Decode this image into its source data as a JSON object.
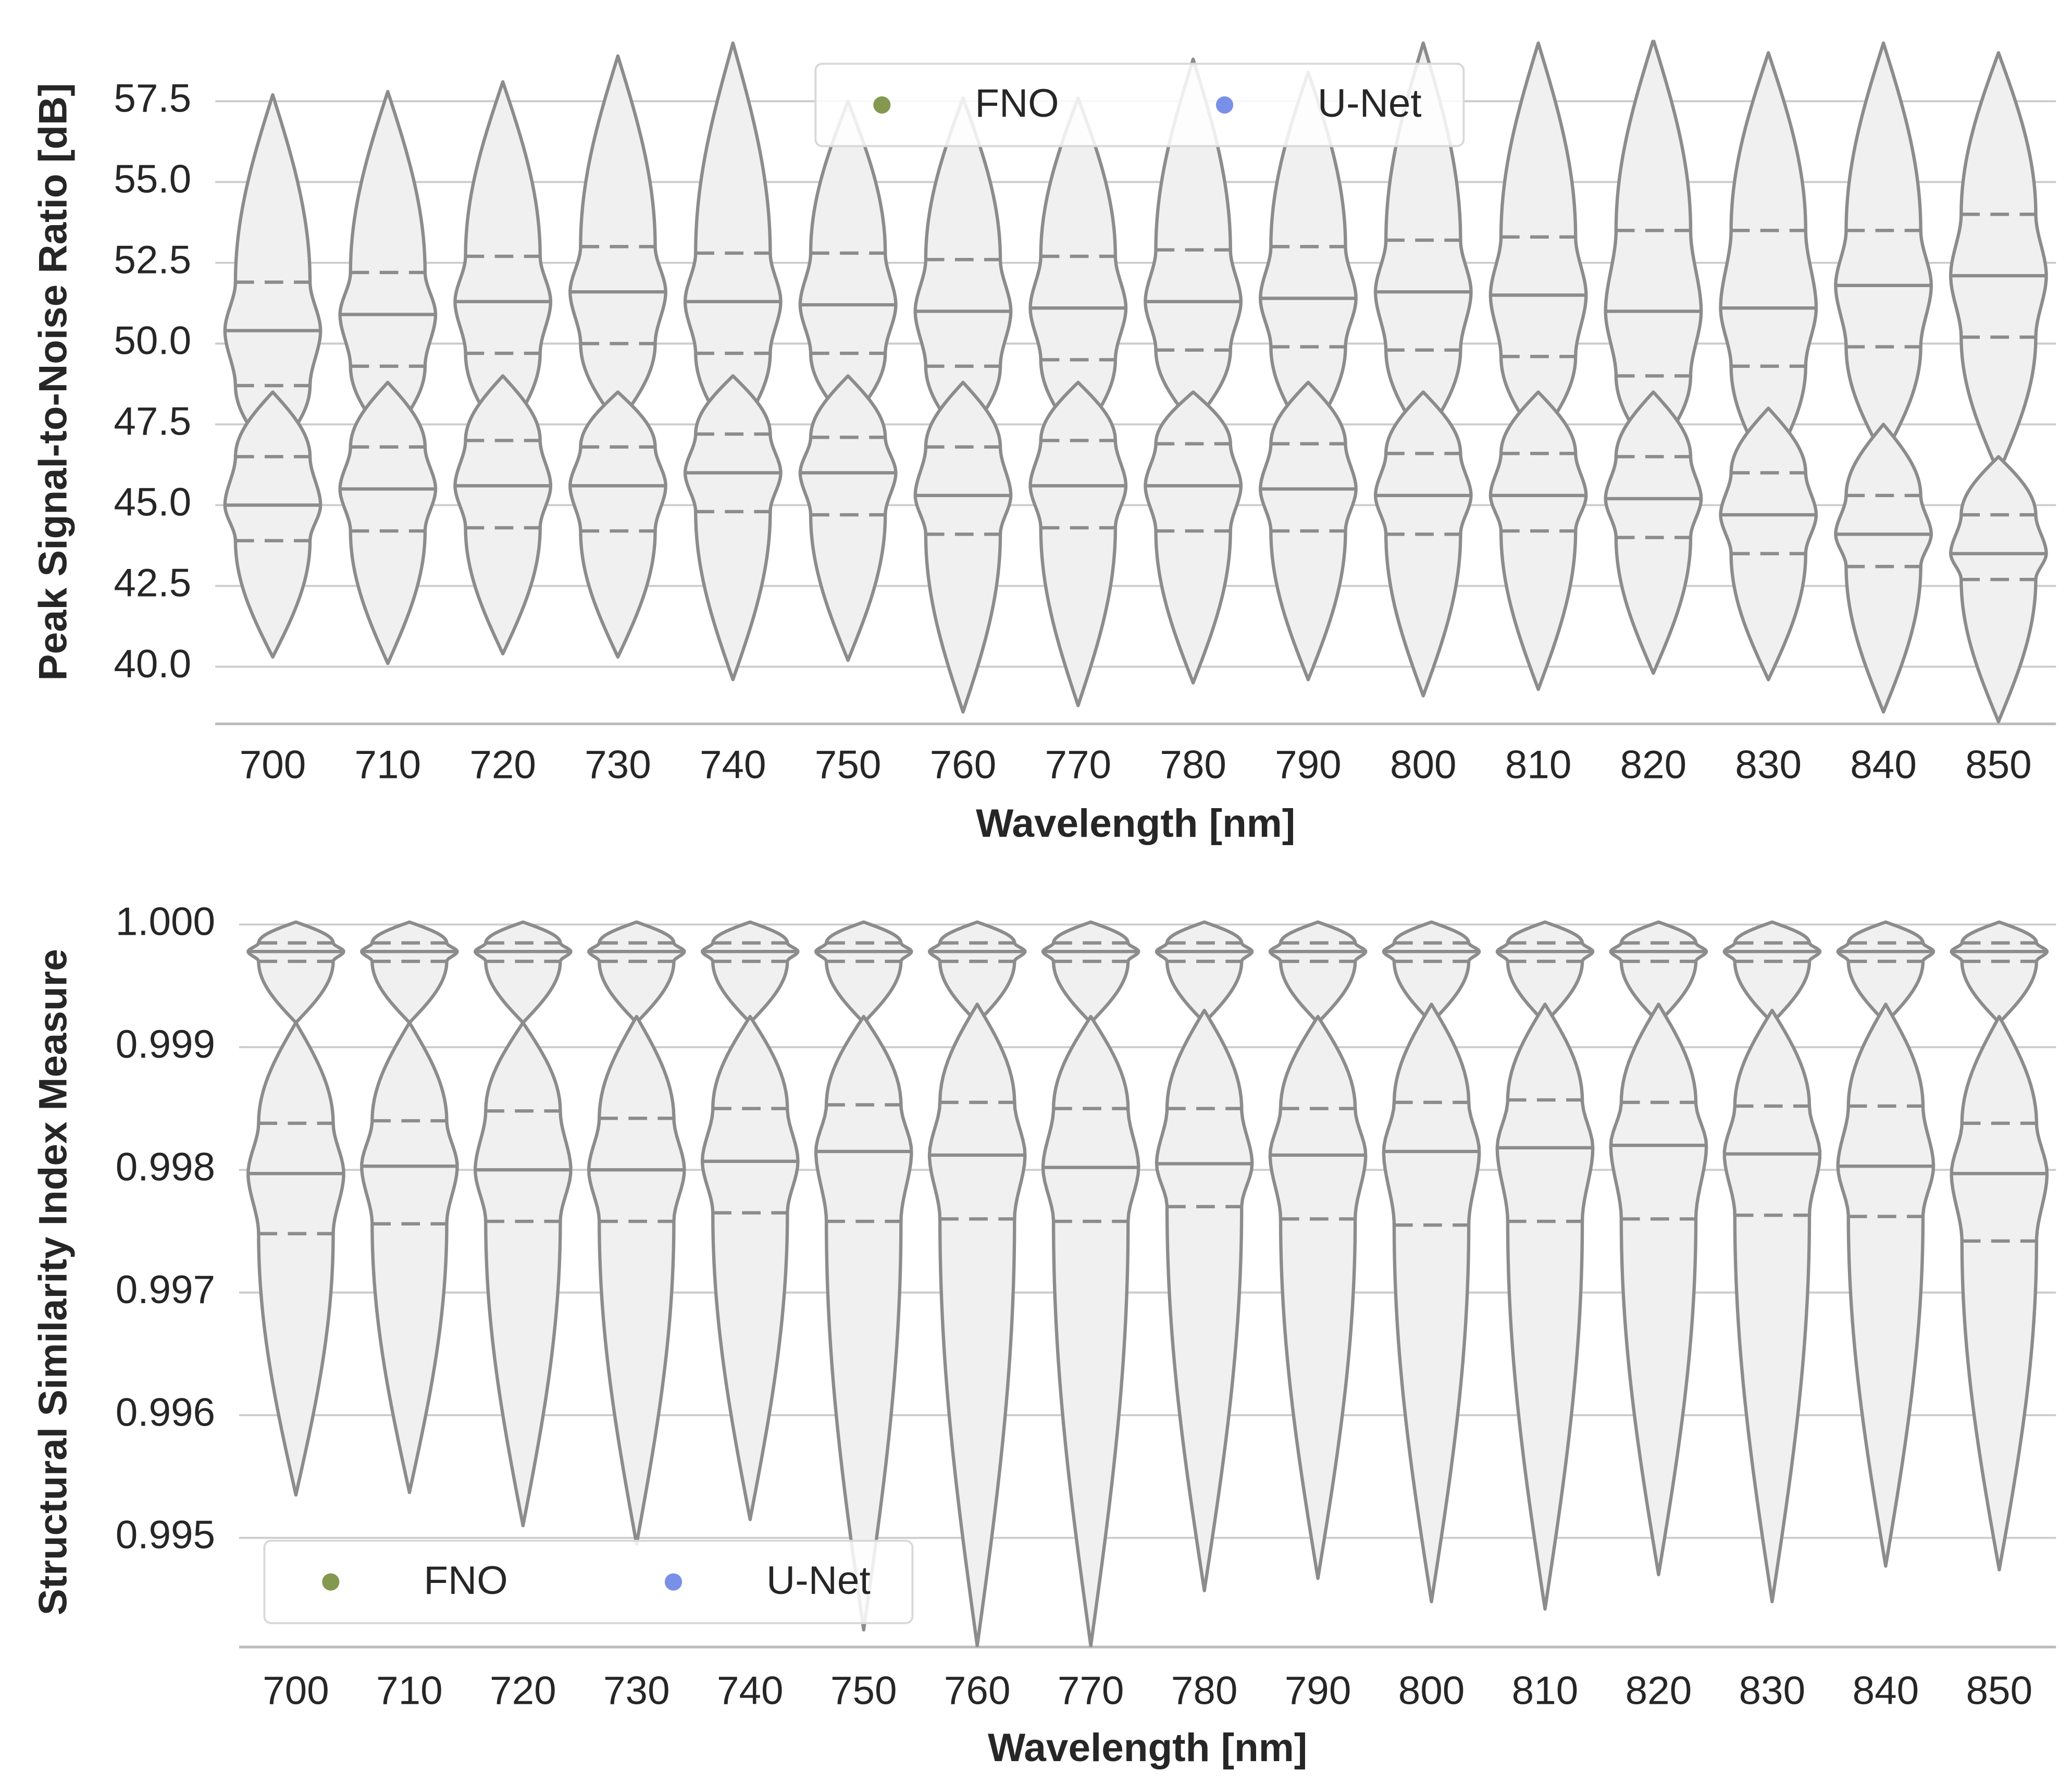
{
  "chart_data": [
    {
      "type": "violin",
      "xlabel": "Wavelength [nm]",
      "ylabel": "Peak Signal-to-Noise Ratio [dB]",
      "categories": [
        "700",
        "710",
        "720",
        "730",
        "740",
        "750",
        "760",
        "770",
        "780",
        "790",
        "800",
        "810",
        "820",
        "830",
        "840",
        "850"
      ],
      "ylim": [
        38.23,
        59.4
      ],
      "yticks": [
        {
          "value": 40,
          "label": "40.0"
        },
        42.5,
        {
          "value": 45,
          "label": "45.0"
        },
        47.5,
        {
          "value": 50,
          "label": "50.0"
        },
        52.5,
        {
          "value": 55,
          "label": "55.0"
        },
        57.5
      ],
      "grid": true,
      "legend": "upper center",
      "series": [
        {
          "name": "FNO",
          "color": "#84994f",
          "min": [
            46.5,
            47.0,
            47.0,
            47.5,
            47.0,
            47.5,
            47.0,
            47.0,
            47.5,
            47.0,
            47.0,
            47.0,
            46.5,
            46.0,
            46.5,
            46.0
          ],
          "q1": [
            48.7,
            49.3,
            49.7,
            50.0,
            49.7,
            49.7,
            49.3,
            49.5,
            49.8,
            49.9,
            49.8,
            49.6,
            49.0,
            49.3,
            49.9,
            50.2
          ],
          "median": [
            50.4,
            50.9,
            51.3,
            51.6,
            51.3,
            51.2,
            51.0,
            51.1,
            51.3,
            51.4,
            51.6,
            51.5,
            51.0,
            51.1,
            51.8,
            52.1
          ],
          "q3": [
            51.9,
            52.2,
            52.7,
            53.0,
            52.8,
            52.8,
            52.6,
            52.7,
            52.9,
            53.0,
            53.2,
            53.3,
            53.5,
            53.5,
            53.5,
            54.0
          ],
          "max": [
            57.7,
            57.8,
            58.1,
            58.9,
            59.3,
            57.5,
            57.6,
            57.6,
            58.8,
            58.4,
            59.3,
            59.3,
            59.4,
            59.0,
            59.3,
            59.0
          ]
        },
        {
          "name": "U-Net",
          "color": "#7990e8",
          "min": [
            40.3,
            40.1,
            40.4,
            40.3,
            39.6,
            40.2,
            38.6,
            38.8,
            39.5,
            39.6,
            39.1,
            39.3,
            39.8,
            39.6,
            38.6,
            38.3
          ],
          "q1": [
            43.9,
            44.2,
            44.3,
            44.2,
            44.8,
            44.7,
            44.1,
            44.3,
            44.2,
            44.2,
            44.1,
            44.2,
            44.0,
            43.5,
            43.1,
            42.7
          ],
          "median": [
            45.0,
            45.5,
            45.6,
            45.6,
            46.0,
            46.0,
            45.3,
            45.6,
            45.6,
            45.5,
            45.3,
            45.3,
            45.2,
            44.7,
            44.1,
            43.5
          ],
          "q3": [
            46.5,
            46.8,
            47.0,
            46.8,
            47.2,
            47.1,
            46.8,
            47.0,
            46.9,
            46.9,
            46.6,
            46.6,
            46.5,
            46.0,
            45.3,
            44.7
          ],
          "max": [
            48.5,
            48.8,
            49.0,
            48.5,
            49.0,
            49.0,
            48.8,
            48.8,
            48.5,
            48.8,
            48.5,
            48.5,
            48.5,
            48.0,
            47.5,
            46.5
          ]
        }
      ]
    },
    {
      "type": "violin",
      "xlabel": "Wavelength [nm]",
      "ylabel": "Structural Similarity Index Measure",
      "categories": [
        "700",
        "710",
        "720",
        "730",
        "740",
        "750",
        "760",
        "770",
        "780",
        "790",
        "800",
        "810",
        "820",
        "830",
        "840",
        "850"
      ],
      "ylim": [
        0.99411,
        1.00006
      ],
      "yticks": [
        0.995,
        0.996,
        0.997,
        0.998,
        0.999,
        {
          "value": 1,
          "label": "1.000"
        }
      ],
      "grid": true,
      "legend": "lower left",
      "series": [
        {
          "name": "FNO",
          "color": "#84994f",
          "min": [
            0.9992,
            0.9992,
            0.9992,
            0.9992,
            0.9992,
            0.9992,
            0.9992,
            0.9992,
            0.9992,
            0.9992,
            0.9992,
            0.9992,
            0.9992,
            0.9992,
            0.9992,
            0.9992
          ],
          "q1": [
            0.9997,
            0.9997,
            0.9997,
            0.9997,
            0.9997,
            0.9997,
            0.9997,
            0.9997,
            0.9997,
            0.9997,
            0.9997,
            0.9997,
            0.9997,
            0.9997,
            0.9997,
            0.9997
          ],
          "median": [
            0.99978,
            0.99978,
            0.99978,
            0.99978,
            0.99978,
            0.99978,
            0.99978,
            0.99978,
            0.99978,
            0.99978,
            0.99978,
            0.99978,
            0.99978,
            0.99978,
            0.99978,
            0.99978
          ],
          "q3": [
            0.99985,
            0.99985,
            0.99985,
            0.99985,
            0.99985,
            0.99985,
            0.99985,
            0.99985,
            0.99985,
            0.99985,
            0.99985,
            0.99985,
            0.99985,
            0.99985,
            0.99985,
            0.99985
          ],
          "max": [
            1.00002,
            1.00002,
            1.00002,
            1.00002,
            1.00002,
            1.00002,
            1.00002,
            1.00002,
            1.00002,
            1.00002,
            1.00002,
            1.00002,
            1.00002,
            1.00002,
            1.00002,
            1.00002
          ]
        },
        {
          "name": "U-Net",
          "color": "#7990e8",
          "min": [
            0.99535,
            0.99537,
            0.9951,
            0.99495,
            0.99515,
            0.99425,
            0.99412,
            0.99412,
            0.99457,
            0.99467,
            0.99448,
            0.99442,
            0.9947,
            0.99448,
            0.99477,
            0.99474
          ],
          "q1": [
            0.99748,
            0.99756,
            0.99758,
            0.99758,
            0.99765,
            0.99758,
            0.9976,
            0.99758,
            0.9977,
            0.9976,
            0.99755,
            0.99758,
            0.9976,
            0.99763,
            0.99762,
            0.99742
          ],
          "median": [
            0.99797,
            0.99803,
            0.998,
            0.998,
            0.99807,
            0.99815,
            0.99812,
            0.99802,
            0.99805,
            0.99812,
            0.99815,
            0.99818,
            0.9982,
            0.99813,
            0.99803,
            0.99797
          ],
          "q3": [
            0.99838,
            0.9984,
            0.99848,
            0.99842,
            0.9985,
            0.99853,
            0.99855,
            0.9985,
            0.9985,
            0.9985,
            0.99855,
            0.99857,
            0.99855,
            0.99852,
            0.99852,
            0.99838
          ],
          "max": [
            0.9992,
            0.9992,
            0.9992,
            0.99925,
            0.99925,
            0.99925,
            0.99935,
            0.99925,
            0.9993,
            0.99925,
            0.99935,
            0.99935,
            0.99935,
            0.9993,
            0.99935,
            0.99925
          ]
        }
      ]
    }
  ]
}
